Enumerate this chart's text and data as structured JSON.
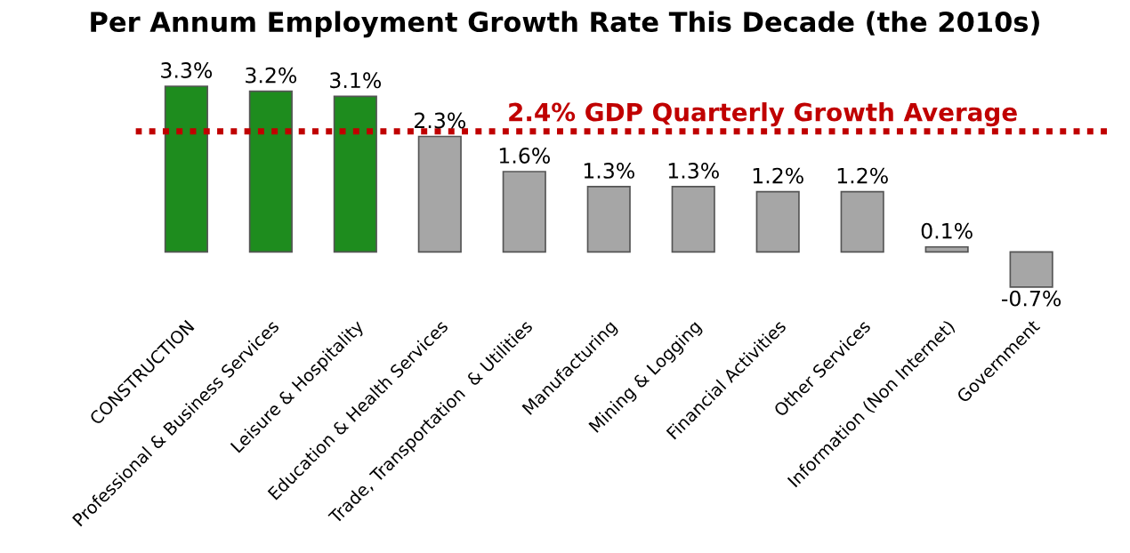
{
  "chart_data": {
    "type": "bar",
    "title": "Per Annum Employment Growth Rate This Decade (the 2010s)",
    "categories": [
      "CONSTRUCTION",
      "Professional & Business Services",
      "Leisure & Hospitality",
      "Education & Health Services",
      "Trade, Transportation  & Utilities",
      "Manufacturing",
      "Mining & Logging",
      "Financial Activities",
      "Other Services",
      "Information (Non Internet)",
      "Government"
    ],
    "values": [
      3.3,
      3.2,
      3.1,
      2.3,
      1.6,
      1.3,
      1.3,
      1.2,
      1.2,
      0.1,
      -0.7
    ],
    "colors": [
      "#1e8c1e",
      "#1e8c1e",
      "#1e8c1e",
      "#a6a6a6",
      "#a6a6a6",
      "#a6a6a6",
      "#a6a6a6",
      "#a6a6a6",
      "#a6a6a6",
      "#a6a6a6",
      "#a6a6a6"
    ],
    "value_labels": [
      "3.3%",
      "3.2%",
      "3.1%",
      "2.3%",
      "1.6%",
      "1.3%",
      "1.3%",
      "1.2%",
      "1.2%",
      "0.1%",
      "-0.7%"
    ],
    "ref_lines": [
      {
        "axis": "y",
        "value": 2.4,
        "label": "2.4% GDP Quarterly Growth Average",
        "color": "#c00000",
        "line_style": "dotted"
      }
    ],
    "grid": false,
    "legend": false
  }
}
